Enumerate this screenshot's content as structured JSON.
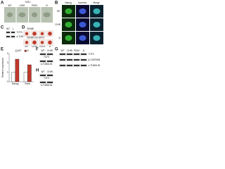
{
  "panels": {
    "A": {
      "label": "A",
      "title": "Tcf3-/-",
      "columns": [
        "WT",
        "CHIR",
        "PD03",
        "2i"
      ]
    },
    "B": {
      "label": "B",
      "columns": [
        "Nanog",
        "Hoechst",
        "Merge"
      ],
      "rows": [
        "WT",
        "CHIR",
        "2i"
      ]
    },
    "C": {
      "label": "C",
      "columns": [
        "WT",
        "-/-"
      ],
      "rows": [
        "TCF3",
        "α-TUB"
      ]
    },
    "D": {
      "label": "D",
      "rows": [
        "Tcf3fl/fl",
        "Tcf3fl/fl Cre-ERT2"
      ],
      "columns": [
        "WT",
        "CHIR",
        "PD03",
        "2i"
      ]
    },
    "E": {
      "label": "E",
      "type": "bar",
      "y_label": "Relative expression",
      "categories": [
        "Nanog",
        "Esrrb"
      ],
      "series": [
        {
          "name": "WT",
          "color": "#ffffff",
          "values": [
            1,
            1
          ]
        },
        {
          "name": "2i",
          "color": "#c0392b",
          "values": [
            2.4,
            1.8
          ]
        }
      ],
      "ylim": [
        0,
        3
      ],
      "yticks": [
        0,
        1,
        2,
        3
      ]
    },
    "F": {
      "label": "F",
      "columns": [
        "WT",
        "CHIR"
      ],
      "rows": [
        "TCF3",
        "α-TUBULIN"
      ]
    },
    "G": {
      "label": "G",
      "columns": [
        "WT",
        "CHIR",
        "PD03",
        "2i"
      ],
      "rows": [
        "TCF3",
        "β-CATENIN",
        "α-TUBULIN"
      ]
    },
    "H": {
      "label": "H",
      "columns": [
        "WT",
        "CHIR"
      ],
      "rows": [
        "TCF3",
        "α-TUBULIN"
      ]
    }
  }
}
